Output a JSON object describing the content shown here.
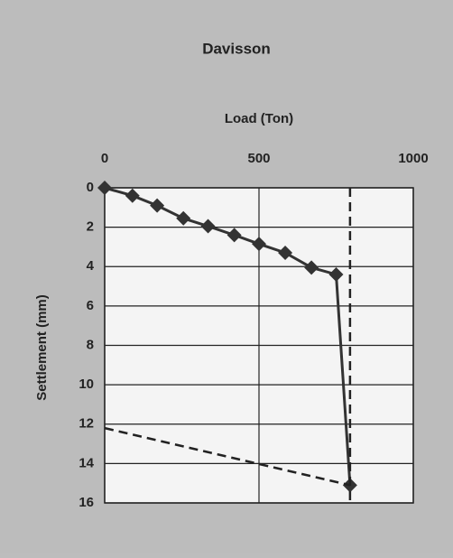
{
  "chart_data": {
    "type": "line",
    "title": "Davisson",
    "x_label": "Load (Ton)",
    "y_label": "Settlement (mm)",
    "xlim": [
      0,
      1000
    ],
    "xticks": [
      0,
      500,
      1000
    ],
    "x_axis_position": "top",
    "ylim": [
      0,
      16
    ],
    "yticks": [
      0,
      2,
      4,
      6,
      8,
      10,
      12,
      14,
      16
    ],
    "y_inverted": true,
    "grid": true,
    "series": [
      {
        "color": "#333333",
        "marker": true,
        "dashed": false,
        "x": [
          0,
          90,
          170,
          255,
          335,
          420,
          500,
          585,
          670,
          750,
          795
        ],
        "values": [
          0,
          0.4,
          0.9,
          1.55,
          1.95,
          2.4,
          2.85,
          3.3,
          4.05,
          4.4,
          15.1
        ]
      },
      {
        "color": "#222222",
        "marker": false,
        "dashed": true,
        "x": [
          795,
          795
        ],
        "values": [
          0,
          16
        ]
      },
      {
        "color": "#222222",
        "marker": false,
        "dashed": true,
        "x": [
          0,
          795
        ],
        "values": [
          12.2,
          15.1
        ]
      }
    ]
  }
}
